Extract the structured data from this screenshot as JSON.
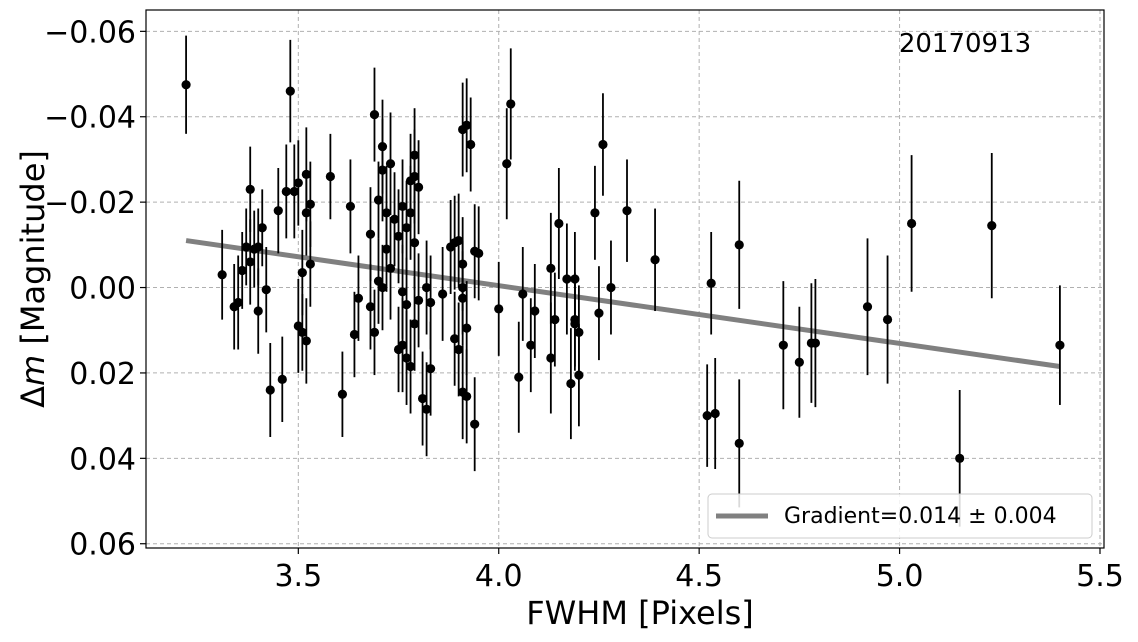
{
  "chart_data": {
    "type": "scatter",
    "title": "",
    "xlabel": "FWHM [Pixels]",
    "ylabel": "Δm [Magnitude]",
    "ylabel_symbol": "Δ",
    "ylabel_var": "m",
    "ylabel_rest": " [Magnitude]",
    "annotation": "20170913",
    "xlim": [
      3.12,
      5.51
    ],
    "ylim": [
      0.061,
      -0.065
    ],
    "y_inverted": true,
    "x_ticks": [
      3.5,
      4.0,
      4.5,
      5.0,
      5.5
    ],
    "x_tick_labels": [
      "3.5",
      "4.0",
      "4.5",
      "5.0",
      "5.5"
    ],
    "y_ticks": [
      -0.06,
      -0.04,
      -0.02,
      0.0,
      0.02,
      0.04,
      0.06
    ],
    "y_tick_labels": [
      "−0.06",
      "−0.04",
      "−0.02",
      "0.00",
      "0.02",
      "0.04",
      "0.06"
    ],
    "grid": true,
    "legend_position": "lower-right",
    "colors": {
      "points": "#000000",
      "fit": "#808080",
      "grid": "#b0b0b0"
    },
    "fit": {
      "name": "Gradient=0.014 ± 0.004",
      "x": [
        3.22,
        5.4
      ],
      "y": [
        -0.011,
        0.0185
      ]
    },
    "series": [
      {
        "type": "errorbar",
        "points": [
          [
            3.22,
            -0.0475,
            0.0115
          ],
          [
            3.31,
            -0.003,
            0.0105
          ],
          [
            3.34,
            0.0045,
            0.01
          ],
          [
            3.35,
            0.0035,
            0.011
          ],
          [
            3.36,
            -0.004,
            0.009
          ],
          [
            3.37,
            -0.0095,
            0.009
          ],
          [
            3.38,
            -0.023,
            0.01
          ],
          [
            3.39,
            -0.009,
            0.009
          ],
          [
            3.38,
            -0.006,
            0.01
          ],
          [
            3.4,
            -0.0095,
            0.009
          ],
          [
            3.4,
            0.0055,
            0.01
          ],
          [
            3.41,
            -0.014,
            0.009
          ],
          [
            3.42,
            0.0005,
            0.01
          ],
          [
            3.43,
            0.024,
            0.011
          ],
          [
            3.45,
            -0.018,
            0.01
          ],
          [
            3.46,
            0.0215,
            0.01
          ],
          [
            3.47,
            -0.0225,
            0.011
          ],
          [
            3.48,
            -0.046,
            0.012
          ],
          [
            3.49,
            -0.0225,
            0.011
          ],
          [
            3.5,
            -0.0245,
            0.01
          ],
          [
            3.5,
            0.009,
            0.011
          ],
          [
            3.51,
            0.0105,
            0.009
          ],
          [
            3.51,
            -0.0035,
            0.01
          ],
          [
            3.52,
            -0.0175,
            0.01
          ],
          [
            3.52,
            -0.0265,
            0.011
          ],
          [
            3.52,
            0.0125,
            0.01
          ],
          [
            3.53,
            -0.0055,
            0.01
          ],
          [
            3.53,
            -0.0195,
            0.01
          ],
          [
            3.58,
            -0.026,
            0.01
          ],
          [
            3.61,
            0.025,
            0.01
          ],
          [
            3.63,
            -0.019,
            0.011
          ],
          [
            3.64,
            0.011,
            0.01
          ],
          [
            3.65,
            0.0025,
            0.01
          ],
          [
            3.68,
            0.0045,
            0.01
          ],
          [
            3.68,
            -0.0125,
            0.011
          ],
          [
            3.69,
            -0.0405,
            0.011
          ],
          [
            3.69,
            0.0105,
            0.01
          ],
          [
            3.7,
            -0.0015,
            0.01
          ],
          [
            3.7,
            -0.0205,
            0.009
          ],
          [
            3.71,
            -0.033,
            0.011
          ],
          [
            3.71,
            0.0,
            0.01
          ],
          [
            3.71,
            -0.0275,
            0.012
          ],
          [
            3.72,
            -0.0175,
            0.011
          ],
          [
            3.72,
            -0.009,
            0.01
          ],
          [
            3.73,
            -0.0045,
            0.012
          ],
          [
            3.73,
            -0.029,
            0.012
          ],
          [
            3.74,
            -0.016,
            0.011
          ],
          [
            3.75,
            0.0145,
            0.01
          ],
          [
            3.75,
            -0.012,
            0.011
          ],
          [
            3.76,
            0.0135,
            0.011
          ],
          [
            3.76,
            -0.019,
            0.011
          ],
          [
            3.76,
            0.001,
            0.011
          ],
          [
            3.77,
            0.004,
            0.011
          ],
          [
            3.77,
            0.0165,
            0.011
          ],
          [
            3.77,
            -0.014,
            0.011
          ],
          [
            3.78,
            0.0185,
            0.011
          ],
          [
            3.78,
            -0.025,
            0.011
          ],
          [
            3.78,
            -0.0175,
            0.011
          ],
          [
            3.79,
            -0.026,
            0.011
          ],
          [
            3.79,
            -0.031,
            0.011
          ],
          [
            3.79,
            -0.0105,
            0.011
          ],
          [
            3.79,
            0.0085,
            0.011
          ],
          [
            3.8,
            0.003,
            0.011
          ],
          [
            3.8,
            -0.0235,
            0.011
          ],
          [
            3.81,
            0.026,
            0.011
          ],
          [
            3.82,
            0.0,
            0.011
          ],
          [
            3.82,
            0.0285,
            0.011
          ],
          [
            3.83,
            0.0035,
            0.011
          ],
          [
            3.83,
            0.019,
            0.011
          ],
          [
            3.86,
            0.0015,
            0.011
          ],
          [
            3.88,
            -0.0095,
            0.011
          ],
          [
            3.89,
            0.012,
            0.011
          ],
          [
            3.89,
            -0.0105,
            0.011
          ],
          [
            3.9,
            0.0145,
            0.011
          ],
          [
            3.9,
            -0.011,
            0.011
          ],
          [
            3.91,
            0.0,
            0.011
          ],
          [
            3.91,
            0.0025,
            0.011
          ],
          [
            3.91,
            -0.0055,
            0.011
          ],
          [
            3.91,
            0.0245,
            0.011
          ],
          [
            3.91,
            -0.037,
            0.011
          ],
          [
            3.92,
            -0.038,
            0.011
          ],
          [
            3.92,
            0.0095,
            0.011
          ],
          [
            3.92,
            0.0255,
            0.011
          ],
          [
            3.93,
            -0.0335,
            0.011
          ],
          [
            3.94,
            0.032,
            0.011
          ],
          [
            3.94,
            -0.0085,
            0.011
          ],
          [
            3.95,
            -0.008,
            0.011
          ],
          [
            4.0,
            0.005,
            0.011
          ],
          [
            4.02,
            -0.029,
            0.013
          ],
          [
            4.03,
            -0.043,
            0.013
          ],
          [
            4.05,
            0.021,
            0.013
          ],
          [
            4.06,
            0.0015,
            0.011
          ],
          [
            4.08,
            0.0135,
            0.011
          ],
          [
            4.09,
            0.0055,
            0.011
          ],
          [
            4.13,
            0.0165,
            0.013
          ],
          [
            4.13,
            -0.0045,
            0.013
          ],
          [
            4.14,
            0.0075,
            0.011
          ],
          [
            4.15,
            -0.015,
            0.013
          ],
          [
            4.17,
            -0.002,
            0.013
          ],
          [
            4.18,
            0.0225,
            0.013
          ],
          [
            4.19,
            -0.002,
            0.011
          ],
          [
            4.19,
            0.0075,
            0.011
          ],
          [
            4.19,
            0.0085,
            0.011
          ],
          [
            4.2,
            0.0105,
            0.011
          ],
          [
            4.2,
            0.0205,
            0.012
          ],
          [
            4.24,
            -0.0175,
            0.011
          ],
          [
            4.25,
            0.006,
            0.011
          ],
          [
            4.26,
            -0.0335,
            0.012
          ],
          [
            4.28,
            0.0,
            0.011
          ],
          [
            4.32,
            -0.018,
            0.012
          ],
          [
            4.39,
            -0.0065,
            0.012
          ],
          [
            4.52,
            0.03,
            0.012
          ],
          [
            4.53,
            -0.001,
            0.012
          ],
          [
            4.54,
            0.0295,
            0.013
          ],
          [
            4.6,
            -0.01,
            0.015
          ],
          [
            4.6,
            0.0365,
            0.015
          ],
          [
            4.71,
            0.0135,
            0.015
          ],
          [
            4.75,
            0.0175,
            0.013
          ],
          [
            4.78,
            0.013,
            0.014
          ],
          [
            4.79,
            0.013,
            0.015
          ],
          [
            4.92,
            0.0045,
            0.016
          ],
          [
            4.97,
            0.0075,
            0.015
          ],
          [
            5.03,
            -0.015,
            0.016
          ],
          [
            5.15,
            0.04,
            0.016
          ],
          [
            5.23,
            -0.0145,
            0.017
          ],
          [
            5.4,
            0.0135,
            0.014
          ]
        ]
      }
    ]
  }
}
